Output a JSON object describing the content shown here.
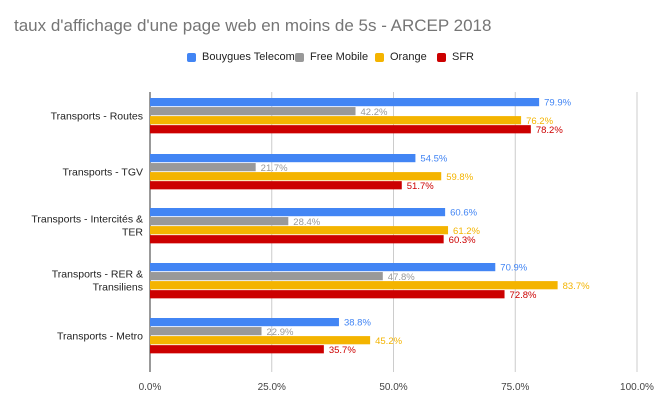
{
  "chart_data": {
    "type": "bar",
    "orientation": "horizontal",
    "title": "taux d'affichage d'une page web en moins de 5s - ARCEP 2018",
    "categories": [
      "Transports - Routes",
      "Transports - TGV",
      "Transports - Intercités & TER",
      "Transports - RER & Transiliens",
      "Transports - Metro"
    ],
    "series": [
      {
        "name": "Bouygues Telecom",
        "color": "#4285f4",
        "values": [
          79.9,
          54.5,
          60.6,
          70.9,
          38.8
        ],
        "labels": [
          "79.9%",
          "54.5%",
          "60.6%",
          "70.9%",
          "38.8%"
        ]
      },
      {
        "name": "Free Mobile",
        "color": "#999999",
        "values": [
          42.2,
          21.7,
          28.4,
          47.8,
          22.9
        ],
        "labels": [
          "42.2%",
          "21.7%",
          "28.4%",
          "47.8%",
          "22.9%"
        ]
      },
      {
        "name": "Orange",
        "color": "#f4b400",
        "values": [
          76.2,
          59.8,
          61.2,
          83.7,
          45.2
        ],
        "labels": [
          "76.2%",
          "59.8%",
          "61.2%",
          "83.7%",
          "45.2%"
        ]
      },
      {
        "name": "SFR",
        "color": "#cc0000",
        "values": [
          78.2,
          51.7,
          60.3,
          72.8,
          35.7
        ],
        "labels": [
          "78.2%",
          "51.7%",
          "60.3%",
          "72.8%",
          "35.7%"
        ]
      }
    ],
    "xlim": [
      0,
      100
    ],
    "xticks": [
      0,
      25,
      50,
      75,
      100
    ],
    "xtick_labels": [
      "0.0%",
      "25.0%",
      "50.0%",
      "75.0%",
      "100.0%"
    ],
    "grid": true,
    "legend_position": "top"
  }
}
